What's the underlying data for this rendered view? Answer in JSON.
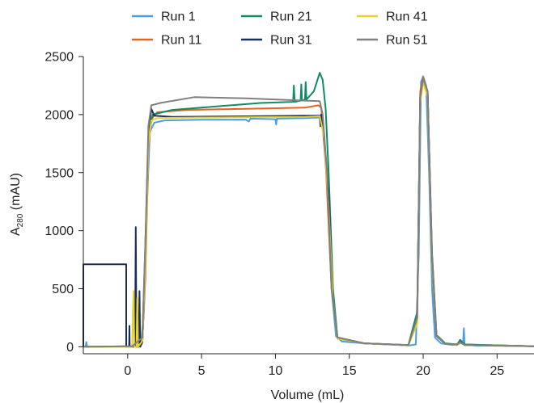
{
  "chart_data": {
    "type": "line",
    "title": "",
    "xlabel": "Volume (mL)",
    "ylabel": {
      "prefix": "A",
      "subscript": "280",
      "suffix": " (mAU)"
    },
    "xlim": [
      -3.0,
      27.5
    ],
    "ylim": [
      -60,
      2500
    ],
    "xticks": [
      0,
      5,
      10,
      15,
      20,
      25
    ],
    "yticks": [
      0,
      500,
      1000,
      1500,
      2000,
      2500
    ],
    "legend_position": "top",
    "grid": false,
    "series": [
      {
        "name": "Run 1",
        "color": "#4a9de8",
        "points": [
          [
            -3,
            0
          ],
          [
            -2.85,
            0
          ],
          [
            -2.8,
            40
          ],
          [
            -2.75,
            0
          ],
          [
            0,
            2
          ],
          [
            0.3,
            5
          ],
          [
            0.6,
            10
          ],
          [
            0.9,
            20
          ],
          [
            1.1,
            300
          ],
          [
            1.3,
            1200
          ],
          [
            1.5,
            1850
          ],
          [
            1.8,
            1930
          ],
          [
            2.5,
            1950
          ],
          [
            5,
            1955
          ],
          [
            8,
            1957
          ],
          [
            8.2,
            1940
          ],
          [
            8.3,
            1965
          ],
          [
            10,
            1960
          ],
          [
            10.05,
            1915
          ],
          [
            10.1,
            1965
          ],
          [
            12,
            1970
          ],
          [
            13,
            1975
          ],
          [
            13.2,
            1900
          ],
          [
            13.5,
            1400
          ],
          [
            13.8,
            500
          ],
          [
            14.1,
            90
          ],
          [
            14.5,
            45
          ],
          [
            16,
            30
          ],
          [
            18,
            20
          ],
          [
            19,
            10
          ],
          [
            19.5,
            20
          ],
          [
            19.7,
            800
          ],
          [
            19.85,
            2280
          ],
          [
            20.0,
            2330
          ],
          [
            20.2,
            2250
          ],
          [
            20.4,
            1500
          ],
          [
            20.6,
            500
          ],
          [
            20.8,
            80
          ],
          [
            21.2,
            30
          ],
          [
            22,
            15
          ],
          [
            22.5,
            30
          ],
          [
            22.7,
            25
          ],
          [
            22.75,
            160
          ],
          [
            22.8,
            20
          ],
          [
            23.5,
            10
          ],
          [
            27.5,
            5
          ]
        ]
      },
      {
        "name": "Run 11",
        "color": "#e8621a",
        "points": [
          [
            -3,
            0
          ],
          [
            0.3,
            5
          ],
          [
            1.0,
            60
          ],
          [
            1.2,
            600
          ],
          [
            1.4,
            1700
          ],
          [
            1.6,
            1960
          ],
          [
            2.0,
            2020
          ],
          [
            4,
            2040
          ],
          [
            8,
            2050
          ],
          [
            10,
            2055
          ],
          [
            12,
            2060
          ],
          [
            12.9,
            2080
          ],
          [
            13.1,
            2060
          ],
          [
            13.4,
            1600
          ],
          [
            13.8,
            500
          ],
          [
            14.2,
            80
          ],
          [
            16,
            30
          ],
          [
            19,
            15
          ],
          [
            19.6,
            300
          ],
          [
            19.8,
            2200
          ],
          [
            20.0,
            2320
          ],
          [
            20.3,
            2200
          ],
          [
            20.6,
            800
          ],
          [
            20.9,
            100
          ],
          [
            21.5,
            25
          ],
          [
            22.3,
            20
          ],
          [
            22.5,
            45
          ],
          [
            22.8,
            20
          ],
          [
            27.5,
            5
          ]
        ]
      },
      {
        "name": "Run 21",
        "color": "#118a66",
        "points": [
          [
            -3,
            0
          ],
          [
            0.3,
            5
          ],
          [
            1.0,
            80
          ],
          [
            1.2,
            900
          ],
          [
            1.4,
            1800
          ],
          [
            1.7,
            2000
          ],
          [
            3,
            2040
          ],
          [
            6,
            2070
          ],
          [
            9,
            2100
          ],
          [
            11.2,
            2110
          ],
          [
            11.25,
            2250
          ],
          [
            11.3,
            2110
          ],
          [
            11.7,
            2120
          ],
          [
            11.75,
            2260
          ],
          [
            11.8,
            2120
          ],
          [
            12.0,
            2130
          ],
          [
            12.05,
            2280
          ],
          [
            12.1,
            2130
          ],
          [
            12.6,
            2200
          ],
          [
            13.0,
            2360
          ],
          [
            13.2,
            2300
          ],
          [
            13.4,
            2050
          ],
          [
            13.6,
            1500
          ],
          [
            13.9,
            500
          ],
          [
            14.2,
            80
          ],
          [
            16,
            30
          ],
          [
            19,
            15
          ],
          [
            19.6,
            300
          ],
          [
            19.8,
            2150
          ],
          [
            20.0,
            2290
          ],
          [
            20.3,
            2200
          ],
          [
            20.6,
            800
          ],
          [
            20.9,
            100
          ],
          [
            21.5,
            30
          ],
          [
            22.3,
            20
          ],
          [
            22.5,
            60
          ],
          [
            22.8,
            20
          ],
          [
            27.5,
            5
          ]
        ]
      },
      {
        "name": "Run 31",
        "color": "#1b2f5c",
        "points": [
          [
            -3,
            0
          ],
          [
            -3,
            710
          ],
          [
            -0.1,
            710
          ],
          [
            -0.1,
            0
          ],
          [
            0.1,
            0
          ],
          [
            0.12,
            180
          ],
          [
            0.14,
            0
          ],
          [
            0.5,
            0
          ],
          [
            0.55,
            1030
          ],
          [
            0.6,
            0
          ],
          [
            0.75,
            0
          ],
          [
            0.8,
            480
          ],
          [
            0.85,
            0
          ],
          [
            1.0,
            40
          ],
          [
            1.2,
            700
          ],
          [
            1.4,
            1800
          ],
          [
            1.6,
            2050
          ],
          [
            1.8,
            1990
          ],
          [
            3,
            1980
          ],
          [
            8,
            1985
          ],
          [
            12,
            1990
          ],
          [
            13.0,
            1990
          ],
          [
            13.05,
            1900
          ],
          [
            13.1,
            2000
          ],
          [
            13.3,
            1800
          ],
          [
            13.6,
            1300
          ],
          [
            13.9,
            400
          ],
          [
            14.2,
            70
          ],
          [
            16,
            30
          ],
          [
            19,
            12
          ],
          [
            19.6,
            250
          ],
          [
            19.8,
            2150
          ],
          [
            20.0,
            2300
          ],
          [
            20.3,
            2200
          ],
          [
            20.6,
            700
          ],
          [
            20.9,
            90
          ],
          [
            21.5,
            25
          ],
          [
            22.3,
            15
          ],
          [
            22.5,
            40
          ],
          [
            22.8,
            15
          ],
          [
            27.5,
            5
          ]
        ]
      },
      {
        "name": "Run 41",
        "color": "#e6d22e",
        "points": [
          [
            -3,
            0
          ],
          [
            0.3,
            0
          ],
          [
            0.35,
            300
          ],
          [
            0.4,
            480
          ],
          [
            0.45,
            0
          ],
          [
            0.6,
            0
          ],
          [
            0.65,
            420
          ],
          [
            0.7,
            0
          ],
          [
            1.0,
            50
          ],
          [
            1.2,
            700
          ],
          [
            1.4,
            1750
          ],
          [
            1.6,
            1950
          ],
          [
            2,
            1970
          ],
          [
            5,
            1975
          ],
          [
            9,
            1978
          ],
          [
            12,
            1980
          ],
          [
            13,
            1985
          ],
          [
            13.3,
            1800
          ],
          [
            13.6,
            1200
          ],
          [
            13.9,
            400
          ],
          [
            14.2,
            70
          ],
          [
            16,
            30
          ],
          [
            19,
            12
          ],
          [
            19.6,
            200
          ],
          [
            19.8,
            2100
          ],
          [
            20.0,
            2280
          ],
          [
            20.3,
            2150
          ],
          [
            20.6,
            700
          ],
          [
            20.9,
            90
          ],
          [
            21.5,
            25
          ],
          [
            22.3,
            15
          ],
          [
            22.5,
            35
          ],
          [
            22.8,
            15
          ],
          [
            27.5,
            5
          ]
        ]
      },
      {
        "name": "Run 51",
        "color": "#808080",
        "points": [
          [
            -3,
            0
          ],
          [
            0.3,
            5
          ],
          [
            1.0,
            80
          ],
          [
            1.2,
            900
          ],
          [
            1.4,
            1900
          ],
          [
            1.6,
            2080
          ],
          [
            2.2,
            2100
          ],
          [
            4.5,
            2150
          ],
          [
            8,
            2140
          ],
          [
            12,
            2120
          ],
          [
            13.0,
            2115
          ],
          [
            13.2,
            2000
          ],
          [
            13.5,
            1500
          ],
          [
            13.8,
            500
          ],
          [
            14.2,
            80
          ],
          [
            16,
            30
          ],
          [
            19,
            15
          ],
          [
            19.6,
            250
          ],
          [
            19.8,
            2150
          ],
          [
            20.0,
            2310
          ],
          [
            20.3,
            2200
          ],
          [
            20.6,
            750
          ],
          [
            20.9,
            90
          ],
          [
            21.5,
            25
          ],
          [
            22.3,
            18
          ],
          [
            22.5,
            40
          ],
          [
            22.8,
            15
          ],
          [
            27.5,
            5
          ]
        ]
      }
    ]
  }
}
